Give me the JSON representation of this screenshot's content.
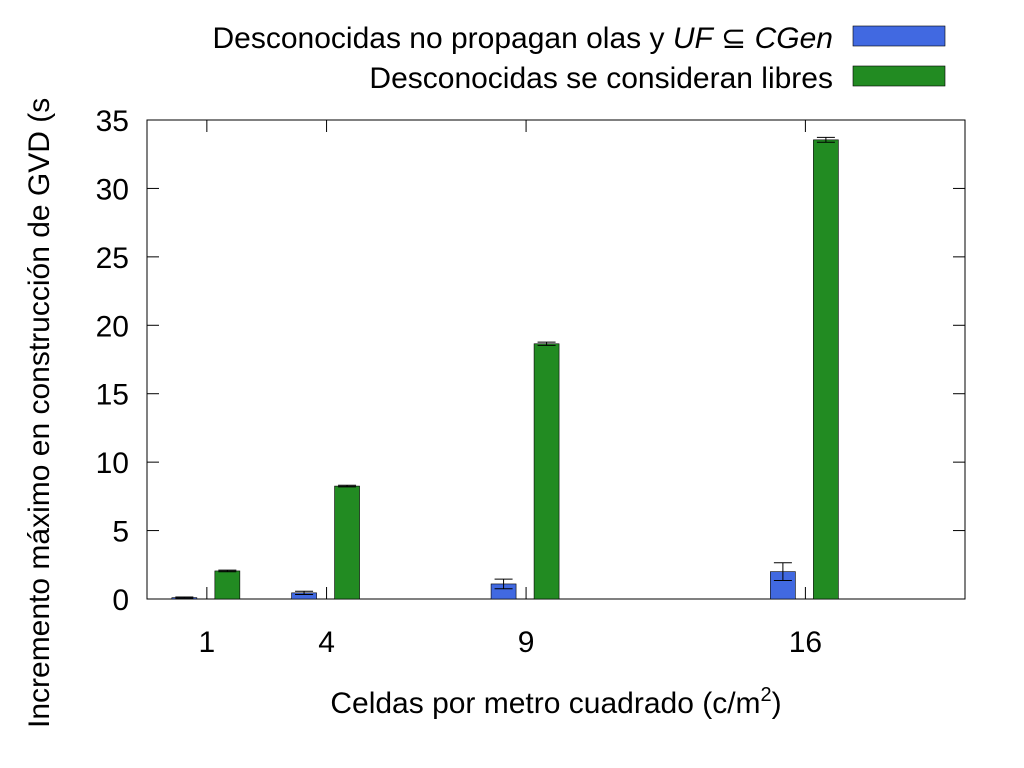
{
  "chart_data": {
    "type": "bar",
    "x": [
      1,
      4,
      9,
      16
    ],
    "xticks": [
      "1",
      "4",
      "9",
      "16"
    ],
    "xlim": [
      -0.5,
      20
    ],
    "ylim": [
      0,
      35
    ],
    "yticks": [
      "0",
      "5",
      "10",
      "15",
      "20",
      "25",
      "30",
      "35"
    ],
    "xlabel": {
      "main": "Celdas por metro cuadrado (c/m",
      "sup": "2",
      "tail": ")"
    },
    "ylabel": "Incremento máximo en construcción de GVD (s",
    "grid": false,
    "legend_position": "top-right",
    "error_bars": true,
    "series": [
      {
        "name": {
          "pre": "Desconocidas no propagan olas y ",
          "it1": "UF",
          "sym": " ⊆ ",
          "it2": "CGen"
        },
        "color": "#4169e1",
        "values": [
          0.1,
          0.45,
          1.1,
          2.0
        ],
        "errors": [
          0.05,
          0.12,
          0.35,
          0.65
        ]
      },
      {
        "name": "Desconocidas se consideran libres",
        "color": "#228b22",
        "values": [
          2.05,
          8.25,
          18.65,
          33.55
        ],
        "errors": [
          0.06,
          0.06,
          0.12,
          0.18
        ]
      }
    ]
  }
}
